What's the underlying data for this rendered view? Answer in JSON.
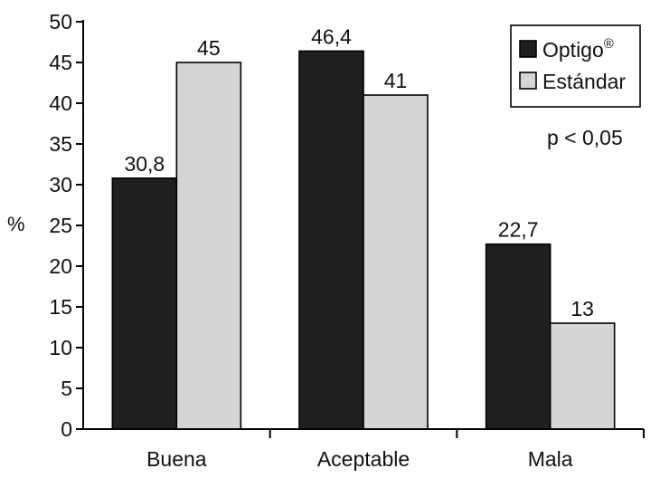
{
  "chart_data": {
    "type": "bar",
    "categories": [
      "Buena",
      "Aceptable",
      "Mala"
    ],
    "series": [
      {
        "name": "Optigo",
        "name_suffix": "®",
        "color": "#1f1f1f",
        "values": [
          30.8,
          46.4,
          22.7
        ],
        "labels": [
          "30,8",
          "46,4",
          "22,7"
        ]
      },
      {
        "name": "Estándar",
        "name_suffix": "",
        "color": "#d4d5d7",
        "values": [
          45,
          41,
          13
        ],
        "labels": [
          "45",
          "41",
          "13"
        ]
      }
    ],
    "xlabel": "",
    "ylabel": "%",
    "ylim": [
      0,
      50
    ],
    "yticks": [
      0,
      5,
      10,
      15,
      20,
      25,
      30,
      35,
      40,
      45,
      50
    ],
    "grid": false,
    "legend_position": "top-right",
    "annotation": "p < 0,05"
  }
}
